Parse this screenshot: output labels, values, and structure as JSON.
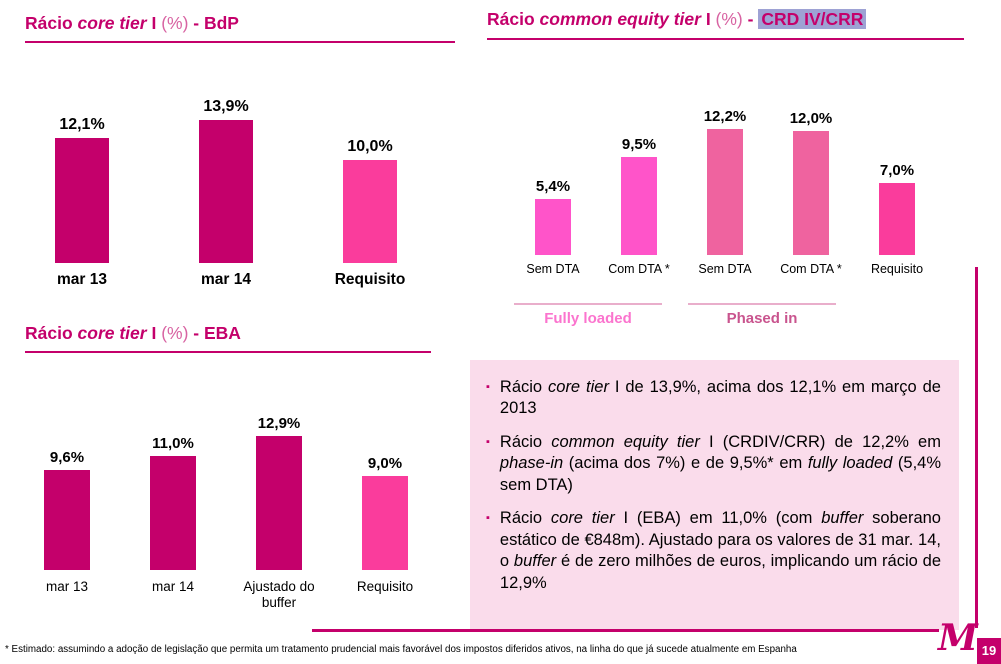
{
  "slide": {
    "footnote": "* Estimado: assumindo a adoção de legislação que permita um tratamento prudencial mais favorável dos impostos diferidos ativos, na linha do que já sucede atualmente em Espanha",
    "page_number": "19",
    "logo_text": "M"
  },
  "titles": {
    "bdp": [
      {
        "t": "Rácio "
      },
      {
        "t": "core tier",
        "i": true
      },
      {
        "t": " I "
      },
      {
        "t": "(%)",
        "light": true
      },
      {
        "t": " - BdP"
      }
    ],
    "crd": [
      {
        "t": "Rácio "
      },
      {
        "t": "common equity tier",
        "i": true
      },
      {
        "t": " I "
      },
      {
        "t": "(%)",
        "light": true
      },
      {
        "t": " - "
      },
      {
        "t": "CRD IV/CRR",
        "hl": true
      }
    ],
    "eba": [
      {
        "t": "Rácio "
      },
      {
        "t": "core tier",
        "i": true
      },
      {
        "t": " I "
      },
      {
        "t": "(%)",
        "light": true
      },
      {
        "t": " - EBA"
      }
    ]
  },
  "chart_data": [
    {
      "type": "bar",
      "title": "Rácio core tier I (%) - BdP",
      "categories": [
        "mar 13",
        "mar 14",
        "Requisito"
      ],
      "values": [
        12.1,
        13.9,
        10.0
      ],
      "labels": [
        "12,1%",
        "13,9%",
        "10,0%"
      ],
      "colors": [
        "#C4006B",
        "#C4006B",
        "#FA3C9C"
      ],
      "unit": "%",
      "ylim": [
        0,
        16
      ],
      "grid": false,
      "legend": "none"
    },
    {
      "type": "bar",
      "title": "Rácio core tier I (%) - EBA",
      "categories": [
        "mar 13",
        "mar 14",
        "Ajustado do buffer",
        "Requisito"
      ],
      "values": [
        9.6,
        11.0,
        12.9,
        9.0
      ],
      "labels": [
        "9,6%",
        "11,0%",
        "12,9%",
        "9,0%"
      ],
      "colors": [
        "#C4006B",
        "#C4006B",
        "#C4006B",
        "#FA3C9C"
      ],
      "unit": "%",
      "ylim": [
        0,
        15
      ],
      "grid": false,
      "legend": "none"
    },
    {
      "type": "bar",
      "title": "Rácio common equity tier I (%) - CRD IV/CRR",
      "categories": [
        "Sem DTA",
        "Com DTA *",
        "Sem DTA",
        "Com DTA *",
        "Requisito"
      ],
      "values": [
        5.4,
        9.5,
        12.2,
        12.0,
        7.0
      ],
      "labels": [
        "5,4%",
        "9,5%",
        "12,2%",
        "12,0%",
        "7,0%"
      ],
      "colors": [
        "#FF54C9",
        "#FF54C9",
        "#EF639F",
        "#EF639F",
        "#FA3C9C"
      ],
      "groups": [
        {
          "label": "Fully loaded",
          "bars": [
            0,
            1
          ],
          "color": "#FB74CE"
        },
        {
          "label": "Phased in",
          "bars": [
            2,
            3
          ],
          "color": "#C9548E"
        }
      ],
      "unit": "%",
      "ylim": [
        0,
        14
      ],
      "grid": false,
      "legend": "none"
    }
  ],
  "info_box": {
    "bullets": [
      [
        {
          "t": "Rácio "
        },
        {
          "t": "core tier",
          "i": true
        },
        {
          "t": " I de 13,9%, acima dos 12,1% em março de 2013"
        }
      ],
      [
        {
          "t": "Rácio "
        },
        {
          "t": "common equity tier",
          "i": true
        },
        {
          "t": " I (CRDIV/CRR) de 12,2% em "
        },
        {
          "t": "phase-in",
          "i": true
        },
        {
          "t": " (acima dos 7%) e de 9,5%* em "
        },
        {
          "t": "fully loaded",
          "i": true
        },
        {
          "t": " (5,4% sem DTA)"
        }
      ],
      [
        {
          "t": "Rácio "
        },
        {
          "t": "core tier",
          "i": true
        },
        {
          "t": " I (EBA) em 11,0% (com "
        },
        {
          "t": "buffer",
          "i": true
        },
        {
          "t": " soberano estático de €848m). Ajustado para os valores de 31 mar. 14, o "
        },
        {
          "t": "buffer",
          "i": true
        },
        {
          "t": " é de zero milhões de euros, implicando um rácio de 12,9%"
        }
      ]
    ]
  },
  "colors": {
    "title": "#C4006B",
    "bar_dark": "#C4006B",
    "bar_pink": "#FA3C9C",
    "bar_bright": "#FF54C9",
    "bar_rose": "#EF639F",
    "highlight": "#9EA2D4",
    "box_bg": "#FADCEB",
    "fully_loaded_label": "#FB74CE",
    "phased_in_label": "#C9548E"
  }
}
